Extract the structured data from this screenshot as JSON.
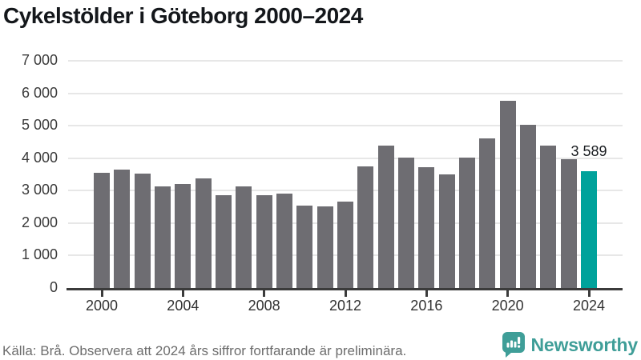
{
  "title": "Cykelstölder i Göteborg 2000–2024",
  "chart_data": {
    "type": "bar",
    "title": "Cykelstölder i Göteborg 2000–2024",
    "x": [
      2000,
      2001,
      2002,
      2003,
      2004,
      2005,
      2006,
      2007,
      2008,
      2009,
      2010,
      2011,
      2012,
      2013,
      2014,
      2015,
      2016,
      2017,
      2018,
      2019,
      2020,
      2021,
      2022,
      2023,
      2024
    ],
    "values": [
      3560,
      3660,
      3520,
      3140,
      3200,
      3380,
      2860,
      3130,
      2860,
      2900,
      2540,
      2510,
      2670,
      3750,
      4400,
      4010,
      3710,
      3500,
      4030,
      4600,
      5780,
      5030,
      4390,
      3980,
      3589
    ],
    "annotation": {
      "year": 2024,
      "label": "3 589"
    },
    "xlabel": "",
    "ylabel": "",
    "ylim": [
      0,
      7000
    ],
    "ytick_values": [
      0,
      1000,
      2000,
      3000,
      4000,
      5000,
      6000,
      7000
    ],
    "ytick_labels": [
      "0",
      "1 000",
      "2 000",
      "3 000",
      "4 000",
      "5 000",
      "6 000",
      "7 000"
    ],
    "xtick_years": [
      2000,
      2004,
      2008,
      2012,
      2016,
      2020,
      2024
    ],
    "grid": "horizontal",
    "legend_position": "none",
    "bar_color": "#6e6d72",
    "highlight_color": "#00a29b"
  },
  "footer": {
    "source": "Källa: Brå. Observera att 2024 års siffror fortfarande är preliminära."
  },
  "branding": {
    "name": "Newsworthy",
    "icon": "newsworthy-speech-bubble-bar-chart-icon",
    "color": "#3f9e98"
  }
}
